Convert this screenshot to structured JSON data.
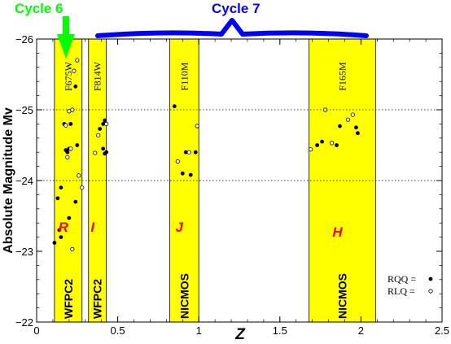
{
  "chart_data": {
    "type": "scatter",
    "xlabel": "Z",
    "ylabel": "Absolute Magnitude Mv",
    "xlim": [
      0,
      2.5
    ],
    "ylim": [
      -22,
      -26
    ],
    "x_ticks": [
      {
        "value": 0,
        "label": "0"
      },
      {
        "value": 0.5,
        "label": "0.5"
      },
      {
        "value": 1,
        "label": "1"
      },
      {
        "value": 1.5,
        "label": "1.5"
      },
      {
        "value": 2,
        "label": "2"
      },
      {
        "value": 2.5,
        "label": "2.5"
      }
    ],
    "y_ticks": [
      {
        "value": -22,
        "label": "−22"
      },
      {
        "value": -23,
        "label": "−23"
      },
      {
        "value": -24,
        "label": "−24"
      },
      {
        "value": -25,
        "label": "−25"
      },
      {
        "value": -26,
        "label": "−26"
      }
    ],
    "grid_lines_y": [
      -25,
      -24
    ],
    "band_color": "#ffff00",
    "bands": [
      {
        "x_range": [
          0.11,
          0.28
        ],
        "filter": "F675W",
        "band": "R",
        "instrument": "WFPC2"
      },
      {
        "x_range": [
          0.32,
          0.43
        ],
        "filter": "F814W",
        "band": "I",
        "instrument": "WFPC2"
      },
      {
        "x_range": [
          0.82,
          1.0
        ],
        "filter": "F110M",
        "band": "J",
        "instrument": "NICMOS"
      },
      {
        "x_range": [
          1.68,
          2.09
        ],
        "filter": "F165M",
        "band": "H",
        "instrument": "NICMOS"
      }
    ],
    "series": [
      {
        "name": "RQQ",
        "marker": "filled-circle",
        "points": [
          [
            0.15,
            -23.2
          ],
          [
            0.19,
            -24.4
          ],
          [
            0.2,
            -24.45
          ],
          [
            0.21,
            -24.8
          ],
          [
            0.25,
            -24.5
          ],
          [
            0.17,
            -24.8
          ],
          [
            0.18,
            -24.43
          ],
          [
            0.14,
            -23.3
          ],
          [
            0.13,
            -23.75
          ],
          [
            0.2,
            -23.47
          ],
          [
            0.15,
            -23.9
          ],
          [
            0.24,
            -23.7
          ],
          [
            0.24,
            -25.33
          ],
          [
            0.39,
            -24.73
          ],
          [
            0.41,
            -24.8
          ],
          [
            0.42,
            -24.38
          ],
          [
            0.42,
            -24.85
          ],
          [
            0.43,
            -24.4
          ],
          [
            0.41,
            -24.45
          ],
          [
            0.85,
            -25.05
          ],
          [
            0.9,
            -24.1
          ],
          [
            0.95,
            -24.08
          ],
          [
            0.92,
            -24.4
          ],
          [
            0.98,
            -24.4
          ],
          [
            1.73,
            -24.5
          ],
          [
            1.76,
            -24.55
          ],
          [
            1.85,
            -24.5
          ],
          [
            1.87,
            -24.77
          ],
          [
            1.97,
            -24.75
          ],
          [
            1.98,
            -24.67
          ],
          [
            0.11,
            -23.12
          ]
        ]
      },
      {
        "name": "RLQ",
        "marker": "open-circle",
        "points": [
          [
            0.25,
            -25.7
          ],
          [
            0.23,
            -25.55
          ],
          [
            0.22,
            -25.0
          ],
          [
            0.18,
            -24.78
          ],
          [
            0.2,
            -24.98
          ],
          [
            0.19,
            -24.33
          ],
          [
            0.21,
            -24.45
          ],
          [
            0.26,
            -24.07
          ],
          [
            0.28,
            -23.9
          ],
          [
            0.22,
            -23.03
          ],
          [
            0.36,
            -24.39
          ],
          [
            0.38,
            -24.64
          ],
          [
            0.43,
            -24.8
          ],
          [
            0.87,
            -24.27
          ],
          [
            0.94,
            -24.4
          ],
          [
            0.99,
            -24.77
          ],
          [
            1.69,
            -24.44
          ],
          [
            1.78,
            -25.0
          ],
          [
            1.82,
            -24.53
          ],
          [
            1.92,
            -24.86
          ],
          [
            1.95,
            -24.93
          ]
        ]
      }
    ],
    "legend": {
      "position": "bottom-right",
      "entries": [
        "RQQ =",
        "RLQ ="
      ]
    },
    "annotations": {
      "cycle6": {
        "label": "Cycle 6",
        "color": "#00ff00"
      },
      "cycle7": {
        "label": "Cycle 7",
        "color": "#0000ff"
      }
    }
  }
}
